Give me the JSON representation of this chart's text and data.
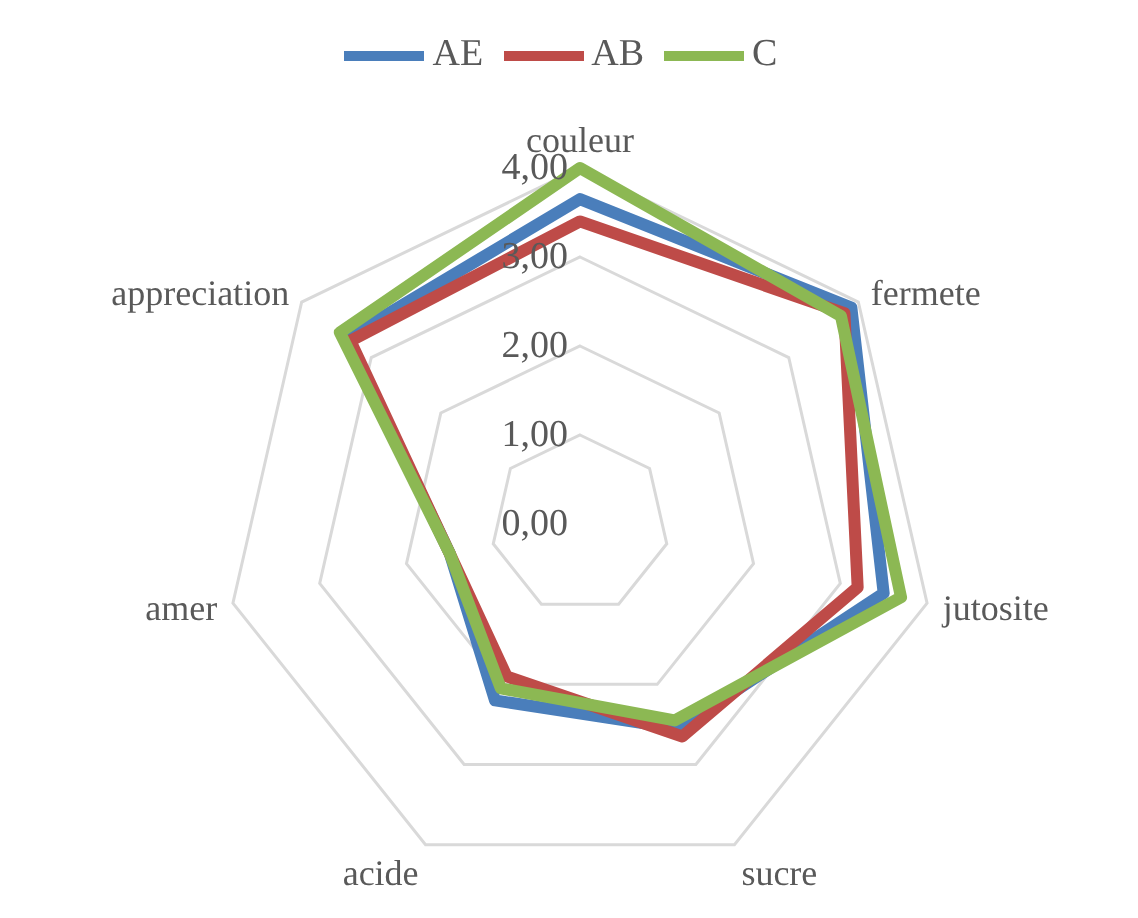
{
  "chart_data": {
    "type": "radar",
    "categories": [
      "couleur",
      "fermete",
      "jutosite",
      "sucre",
      "acide",
      "amer",
      "appreciation"
    ],
    "series": [
      {
        "name": "AE",
        "color": "#4a7ebb",
        "values": [
          3.65,
          3.9,
          3.5,
          2.55,
          2.2,
          1.5,
          3.35
        ]
      },
      {
        "name": "AB",
        "color": "#be4b48",
        "values": [
          3.4,
          3.8,
          3.2,
          2.65,
          1.9,
          1.5,
          3.3
        ]
      },
      {
        "name": "C",
        "color": "#8cb853",
        "values": [
          4.0,
          3.75,
          3.7,
          2.45,
          2.05,
          1.5,
          3.45
        ]
      }
    ],
    "ylim": [
      0,
      4
    ],
    "yticks": [
      {
        "value": 0,
        "label": "0,00"
      },
      {
        "value": 1,
        "label": "1,00"
      },
      {
        "value": 2,
        "label": "2,00"
      },
      {
        "value": 3,
        "label": "3,00"
      },
      {
        "value": 4,
        "label": "4,00"
      }
    ],
    "grid": true,
    "legend": "top"
  }
}
